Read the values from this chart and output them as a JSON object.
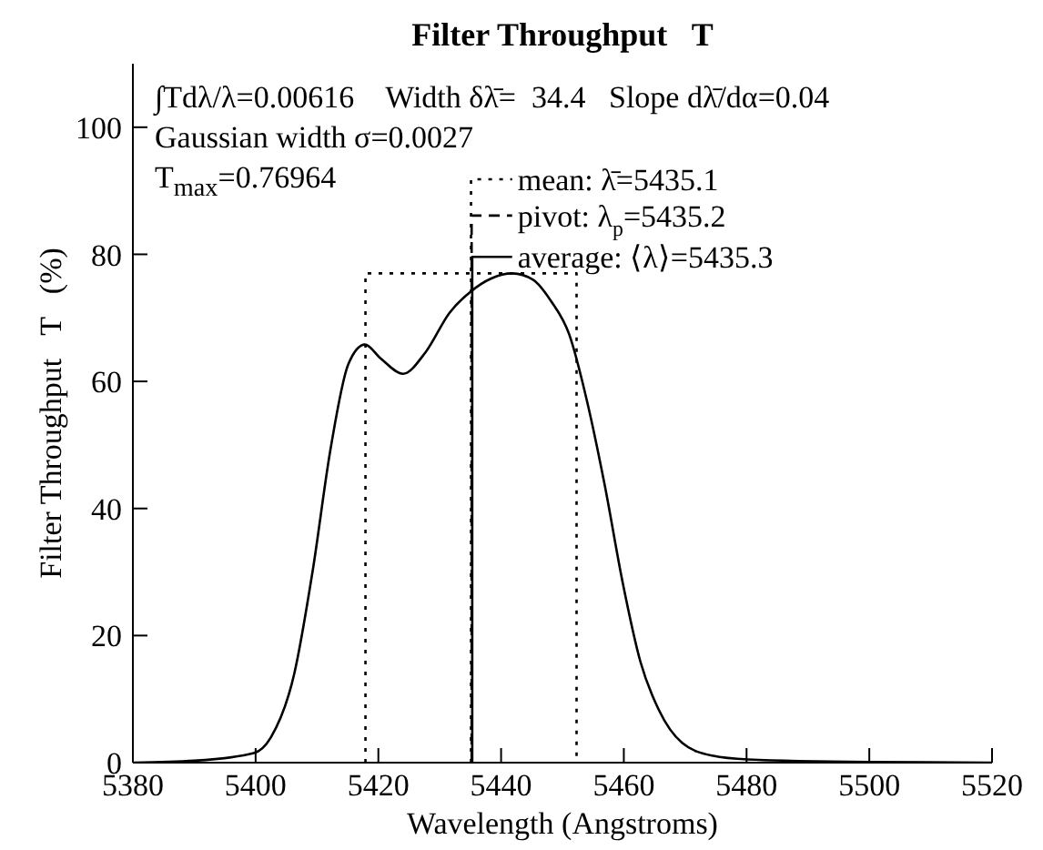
{
  "chart_data": {
    "type": "line",
    "title": "Filter Throughput   T",
    "xlabel": "Wavelength (Angstroms)",
    "ylabel": "Filter Throughput   T   (%)",
    "xlim": [
      5380,
      5520
    ],
    "xticks": [
      5380,
      5400,
      5420,
      5440,
      5460,
      5480,
      5500,
      5520
    ],
    "ylim": [
      0,
      110
    ],
    "yticks": [
      0,
      20,
      40,
      60,
      80,
      100
    ],
    "marker": "none",
    "series": [
      {
        "color": "#000000",
        "line_style": "solid",
        "x": [
          5380,
          5390,
          5399.7,
          5402.5,
          5406.3,
          5409.3,
          5412.2,
          5415.1,
          5417.8,
          5420.4,
          5424,
          5427.7,
          5431.6,
          5435,
          5438.4,
          5441.8,
          5445.2,
          5448.1,
          5451.1,
          5454,
          5456.9,
          5459.8,
          5462.7,
          5465.7,
          5469.5,
          5474.4,
          5480.2,
          5500,
          5520
        ],
        "values": [
          0,
          0.3,
          1.5,
          4.0,
          14,
          30.2,
          49.3,
          62.7,
          65.8,
          63.6,
          61.2,
          64.6,
          70.8,
          74.1,
          76.2,
          77.0,
          76.0,
          72.7,
          67.4,
          56.9,
          43.6,
          28.4,
          15.9,
          8.3,
          3.1,
          1.1,
          0.5,
          0.1,
          0
        ]
      },
      {
        "color": "#000000",
        "line_style": "dotted",
        "x": [
          5417.9,
          5417.9,
          5452.3,
          5452.3
        ],
        "values": [
          0,
          77.0,
          77.0,
          0
        ]
      },
      {
        "name": "mean: λ̄=5435.1",
        "color": "#000000",
        "line_style": "dotted",
        "x": [
          5435.1,
          5435.1,
          5441.8
        ],
        "values": [
          0,
          91.8,
          91.8
        ]
      },
      {
        "name": "pivot: λ$_{p}$=5435.2",
        "color": "#000000",
        "line_style": "dashed",
        "x": [
          5435.2,
          5435.2,
          5441.8
        ],
        "values": [
          0,
          86.1,
          86.1
        ]
      },
      {
        "name": "average: ⟨λ⟩=5435.3",
        "color": "#000000",
        "line_style": "solid",
        "x": [
          5435.3,
          5435.3,
          5441.8
        ],
        "values": [
          0,
          79.6,
          79.6
        ]
      }
    ],
    "annotations": [
      "∫Tdλ/λ=0.00616    Width δλ̄=  34.4   Slope dλ̄/dα=0.04",
      "Gaussian width σ=0.0027",
      "T$_{max}$=0.76964"
    ]
  }
}
